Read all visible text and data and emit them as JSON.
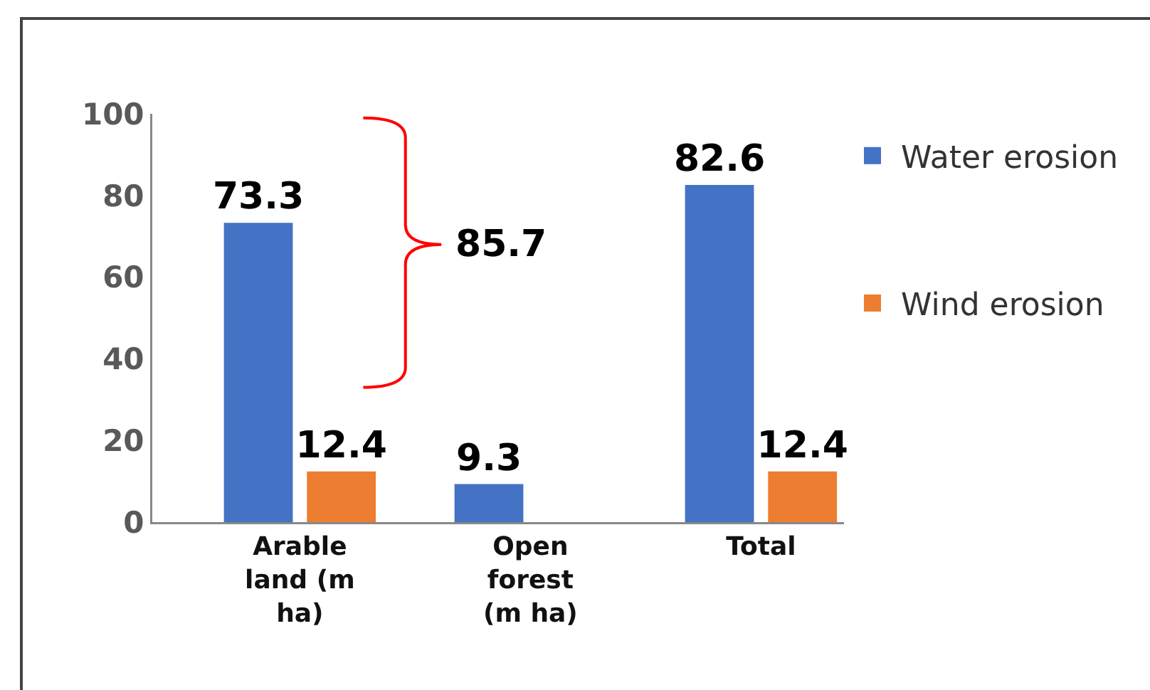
{
  "chart_data": {
    "type": "bar",
    "categories": [
      "Arable land (m ha)",
      "Open forest (m ha)",
      "Total"
    ],
    "series": [
      {
        "name": "Water erosion",
        "color": "#4472c4",
        "values": [
          73.3,
          9.3,
          82.6
        ]
      },
      {
        "name": "Wind erosion",
        "color": "#ed7d31",
        "values": [
          12.4,
          null,
          12.4
        ]
      }
    ],
    "ylim": [
      0,
      100
    ],
    "yticks": [
      0,
      20,
      40,
      60,
      80,
      100
    ],
    "data_labels": true,
    "legend": "right",
    "annotations": [
      "85.7"
    ]
  }
}
